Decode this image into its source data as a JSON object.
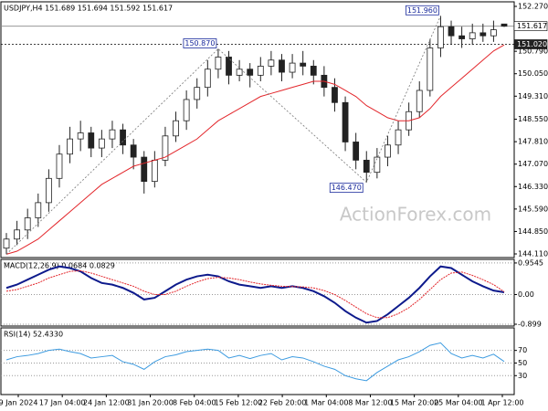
{
  "chart_data": [
    {
      "type": "candlestick",
      "title": "USDJPY,H4  151.689 151.694 151.592 151.617",
      "watermark": "ActionForex.com",
      "open": [
        144.3,
        144.6,
        144.9,
        145.3,
        145.8,
        146.6,
        147.4,
        147.9,
        148.1,
        147.6,
        147.9,
        148.2,
        147.7,
        147.3,
        146.5,
        147.2,
        148.0,
        148.5,
        149.2,
        149.6,
        150.2,
        150.6,
        150.0,
        150.2,
        150.0,
        150.3,
        150.5,
        150.1,
        150.4,
        150.3,
        150.0,
        149.6,
        149.1,
        147.8,
        147.2,
        146.8,
        147.3,
        147.7,
        148.2,
        148.8,
        149.5,
        150.9,
        151.6,
        151.3,
        151.2,
        151.4,
        151.3,
        151.689
      ],
      "high": [
        144.8,
        145.2,
        145.6,
        146.1,
        146.9,
        147.7,
        148.3,
        148.5,
        148.3,
        148.2,
        148.5,
        148.4,
        147.9,
        147.5,
        147.5,
        148.3,
        148.8,
        149.5,
        149.9,
        150.5,
        150.87,
        150.8,
        150.5,
        150.4,
        150.6,
        150.8,
        150.7,
        150.7,
        150.8,
        150.5,
        150.3,
        149.9,
        149.3,
        148.1,
        147.5,
        147.6,
        148.0,
        148.5,
        149.1,
        149.8,
        151.2,
        151.96,
        151.8,
        151.6,
        151.7,
        151.7,
        151.8,
        151.694
      ],
      "low": [
        144.1,
        144.4,
        144.6,
        145.0,
        145.5,
        146.3,
        147.1,
        147.5,
        147.3,
        147.3,
        147.6,
        147.4,
        146.9,
        146.1,
        146.3,
        147.0,
        147.8,
        148.2,
        148.9,
        149.3,
        149.9,
        149.7,
        149.8,
        149.6,
        149.8,
        150.0,
        149.8,
        149.9,
        150.0,
        149.7,
        149.3,
        148.8,
        147.5,
        146.9,
        146.47,
        146.6,
        147.0,
        147.4,
        148.0,
        148.6,
        149.3,
        150.6,
        151.0,
        150.9,
        151.0,
        151.1,
        151.1,
        151.592
      ],
      "close": [
        144.6,
        144.9,
        145.3,
        145.8,
        146.6,
        147.4,
        147.9,
        148.1,
        147.6,
        147.9,
        148.2,
        147.7,
        147.3,
        146.5,
        147.2,
        148.0,
        148.5,
        149.2,
        149.6,
        150.2,
        150.6,
        150.0,
        150.2,
        150.0,
        150.3,
        150.5,
        150.1,
        150.4,
        150.3,
        150.0,
        149.6,
        149.1,
        147.8,
        147.2,
        146.8,
        147.3,
        147.7,
        148.2,
        148.8,
        149.5,
        150.9,
        151.6,
        151.3,
        151.2,
        151.4,
        151.3,
        151.5,
        151.617
      ],
      "ma": {
        "color": "#e3262b",
        "values": [
          144.1,
          144.2,
          144.4,
          144.6,
          144.9,
          145.2,
          145.5,
          145.8,
          146.1,
          146.4,
          146.6,
          146.8,
          147.0,
          147.1,
          147.2,
          147.3,
          147.5,
          147.7,
          147.9,
          148.2,
          148.5,
          148.7,
          148.9,
          149.1,
          149.3,
          149.4,
          149.5,
          149.6,
          149.7,
          149.8,
          149.8,
          149.7,
          149.5,
          149.3,
          149.0,
          148.8,
          148.6,
          148.5,
          148.5,
          148.6,
          148.9,
          149.3,
          149.6,
          149.9,
          150.2,
          150.5,
          150.8,
          151.0
        ]
      },
      "ylim": [
        143.99,
        152.42
      ],
      "yticks": [
        {
          "value": 152.27,
          "label": "152.270"
        },
        {
          "value": 150.79,
          "label": "150.790"
        },
        {
          "value": 150.05,
          "label": "150.050"
        },
        {
          "value": 149.31,
          "label": "149.310"
        },
        {
          "value": 148.55,
          "label": "148.550"
        },
        {
          "value": 147.81,
          "label": "147.810"
        },
        {
          "value": 147.07,
          "label": "147.070"
        },
        {
          "value": 146.33,
          "label": "146.330"
        },
        {
          "value": 145.59,
          "label": "145.590"
        },
        {
          "value": 144.85,
          "label": "144.850"
        },
        {
          "value": 144.11,
          "label": "144.110"
        }
      ],
      "levels": [
        {
          "value": 151.617,
          "label": "151.617"
        },
        {
          "value": 151.02,
          "label": "151.020"
        }
      ],
      "annotations": [
        {
          "value": 150.87,
          "label": "150.870"
        },
        {
          "value": 146.47,
          "label": "146.470"
        },
        {
          "value": 151.96,
          "label": "151.960"
        }
      ],
      "grid": false
    },
    {
      "type": "line",
      "title": "MACD(12,26,9) 0.0684 0.0829",
      "series": [
        {
          "color": "#0d1a8c",
          "values": [
            0.2,
            0.3,
            0.45,
            0.6,
            0.75,
            0.85,
            0.8,
            0.7,
            0.5,
            0.35,
            0.3,
            0.2,
            0.05,
            -0.15,
            -0.1,
            0.1,
            0.3,
            0.45,
            0.55,
            0.6,
            0.55,
            0.4,
            0.3,
            0.25,
            0.2,
            0.25,
            0.2,
            0.25,
            0.2,
            0.1,
            -0.05,
            -0.25,
            -0.5,
            -0.7,
            -0.85,
            -0.8,
            -0.6,
            -0.35,
            -0.1,
            0.2,
            0.55,
            0.85,
            0.8,
            0.6,
            0.4,
            0.25,
            0.12,
            0.0684
          ]
        },
        {
          "color": "#e3262b",
          "values": [
            0.1,
            0.15,
            0.25,
            0.35,
            0.5,
            0.6,
            0.7,
            0.72,
            0.65,
            0.55,
            0.45,
            0.35,
            0.25,
            0.1,
            0.0,
            0.0,
            0.1,
            0.25,
            0.38,
            0.48,
            0.52,
            0.5,
            0.45,
            0.38,
            0.32,
            0.28,
            0.25,
            0.24,
            0.23,
            0.2,
            0.12,
            0.0,
            -0.18,
            -0.38,
            -0.58,
            -0.7,
            -0.7,
            -0.58,
            -0.4,
            -0.15,
            0.15,
            0.45,
            0.65,
            0.68,
            0.58,
            0.45,
            0.3,
            0.0829
          ]
        }
      ],
      "ylim": [
        -0.954,
        1.063
      ],
      "yticks": [
        0.9545,
        {
          "value": 0,
          "label": "0.00"
        },
        -0.899
      ],
      "grid": true
    },
    {
      "type": "line",
      "title": "RSI(14) 52.4330",
      "series": [
        {
          "color": "#3d9be0",
          "values": [
            55,
            60,
            62,
            65,
            70,
            72,
            68,
            65,
            58,
            60,
            62,
            52,
            48,
            40,
            52,
            60,
            63,
            68,
            70,
            72,
            70,
            58,
            62,
            57,
            62,
            65,
            55,
            60,
            58,
            52,
            45,
            40,
            30,
            25,
            22,
            35,
            45,
            55,
            60,
            68,
            78,
            82,
            65,
            58,
            62,
            58,
            64,
            52.433
          ]
        }
      ],
      "ylim": [
        0,
        105.7
      ],
      "yticks": [
        70,
        50,
        30
      ],
      "grid": true,
      "x_tick_labels": [
        "9 Jan 2024",
        "17 Jan 04:00",
        "24 Jan 12:00",
        "31 Jan 20:00",
        "8 Feb 04:00",
        "15 Feb 12:00",
        "22 Feb 20:00",
        "1 Mar 04:00",
        "8 Mar 12:00",
        "15 Mar 20:00",
        "25 Mar 04:00",
        "1 Apr 12:00"
      ]
    }
  ]
}
